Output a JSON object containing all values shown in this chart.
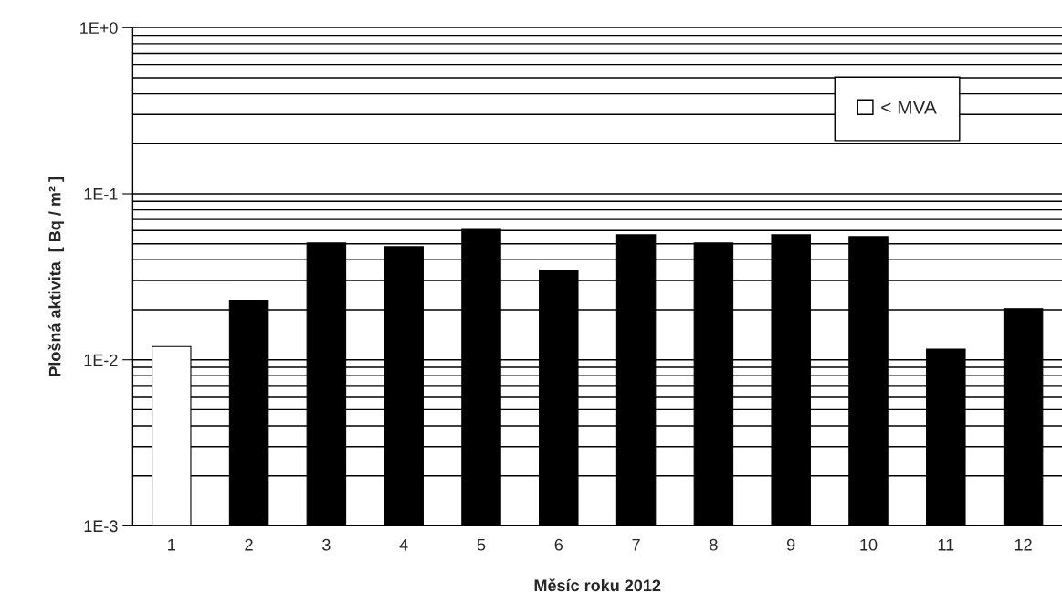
{
  "chart_data": {
    "type": "bar",
    "xlabel": "Měsíc roku 2012",
    "ylabel": "Plošná aktivita  [ Bq / m² ]",
    "categories": [
      "1",
      "2",
      "3",
      "4",
      "5",
      "6",
      "7",
      "8",
      "9",
      "10",
      "11",
      "12"
    ],
    "series": [
      {
        "name": "< MVA",
        "color": "#ffffff",
        "values": [
          0.012,
          null,
          null,
          null,
          null,
          null,
          null,
          null,
          null,
          null,
          null,
          null
        ]
      },
      {
        "color": "#000000",
        "values": [
          null,
          0.0228,
          0.0505,
          0.048,
          0.061,
          0.0345,
          0.0566,
          0.0505,
          0.0566,
          0.0552,
          0.0116,
          0.0203
        ]
      }
    ],
    "stacked": true,
    "log": "y",
    "ylim": [
      0.001,
      1
    ],
    "yticks": [
      {
        "value": 0.001,
        "label": "1E-3"
      },
      {
        "value": 0.01,
        "label": "1E-2"
      },
      {
        "value": 0.1,
        "label": "1E-1"
      },
      {
        "value": 1,
        "label": "1E+0"
      }
    ],
    "grid": "y",
    "legend": "top right"
  }
}
